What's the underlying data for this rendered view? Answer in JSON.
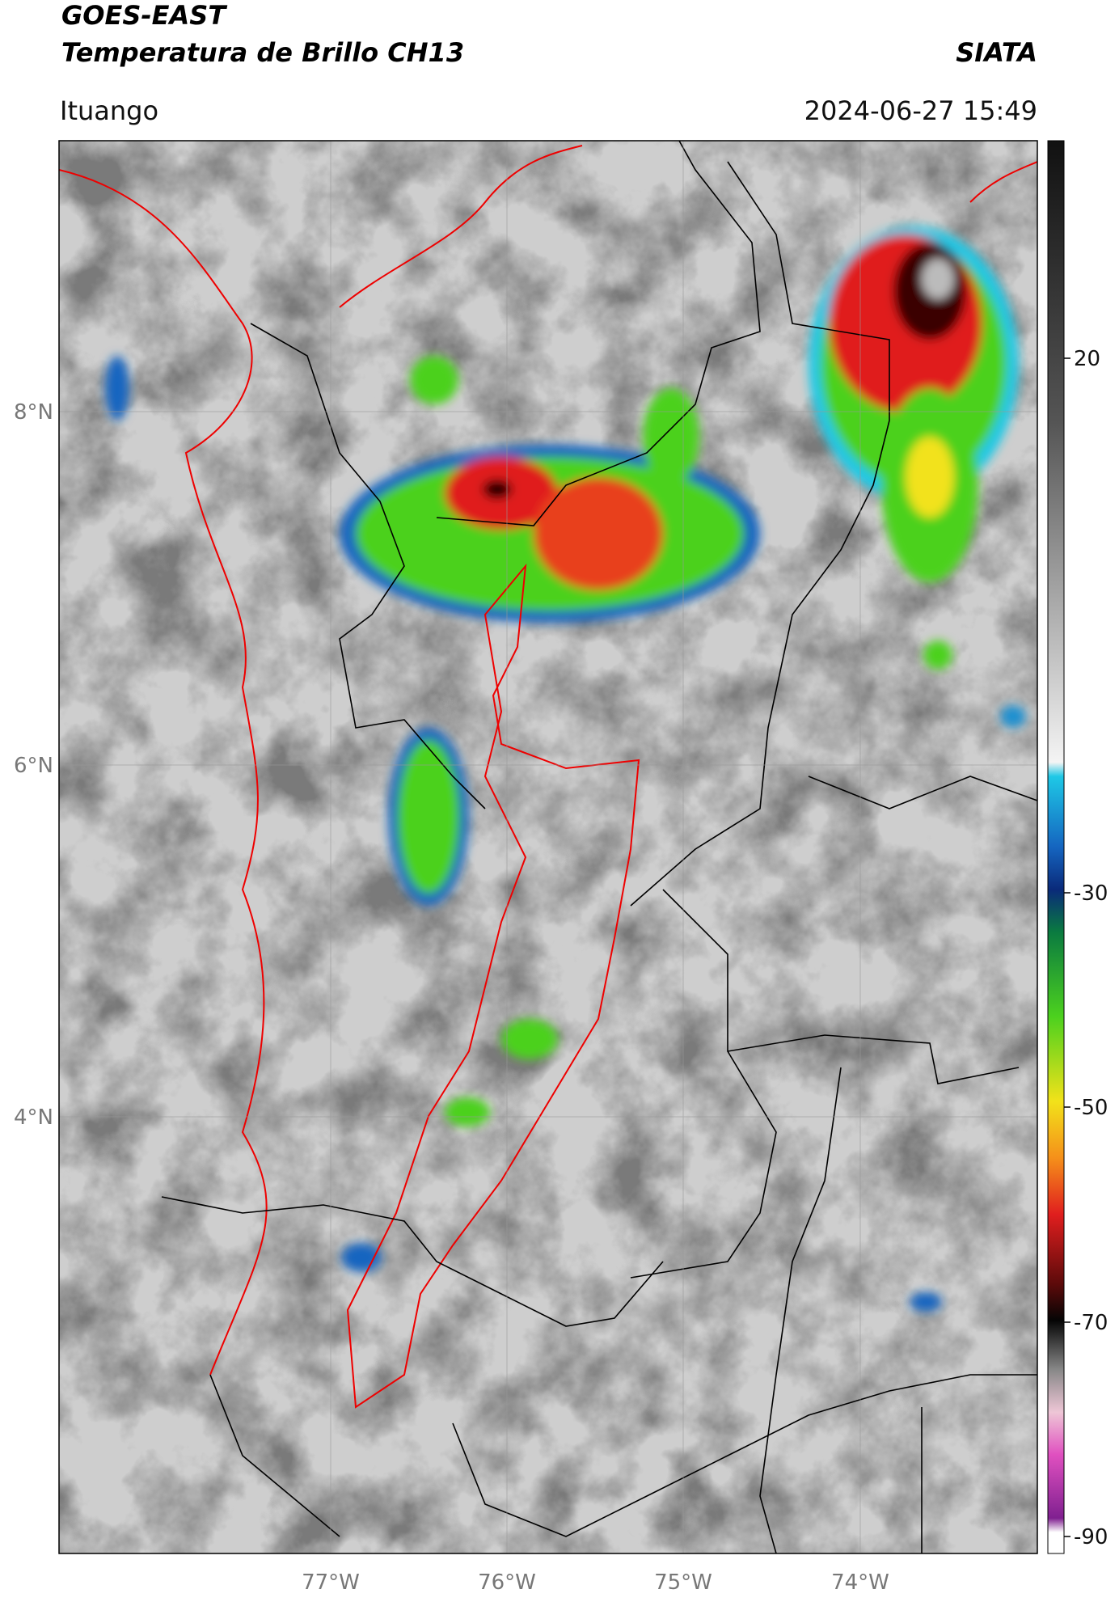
{
  "header": {
    "title": "GOES-EAST",
    "subtitle": "Temperatura de Brillo CH13",
    "source": "SIATA",
    "location": "Ituango",
    "timestamp": "2024-06-27 15:49"
  },
  "map": {
    "lat_labels": [
      "8°N",
      "6°N",
      "4°N"
    ],
    "lon_labels": [
      "77°W",
      "76°W",
      "75°W",
      "74°W"
    ]
  },
  "colorbar": {
    "tick_labels": [
      "20",
      "-30",
      "-50",
      "-70",
      "-90"
    ]
  }
}
